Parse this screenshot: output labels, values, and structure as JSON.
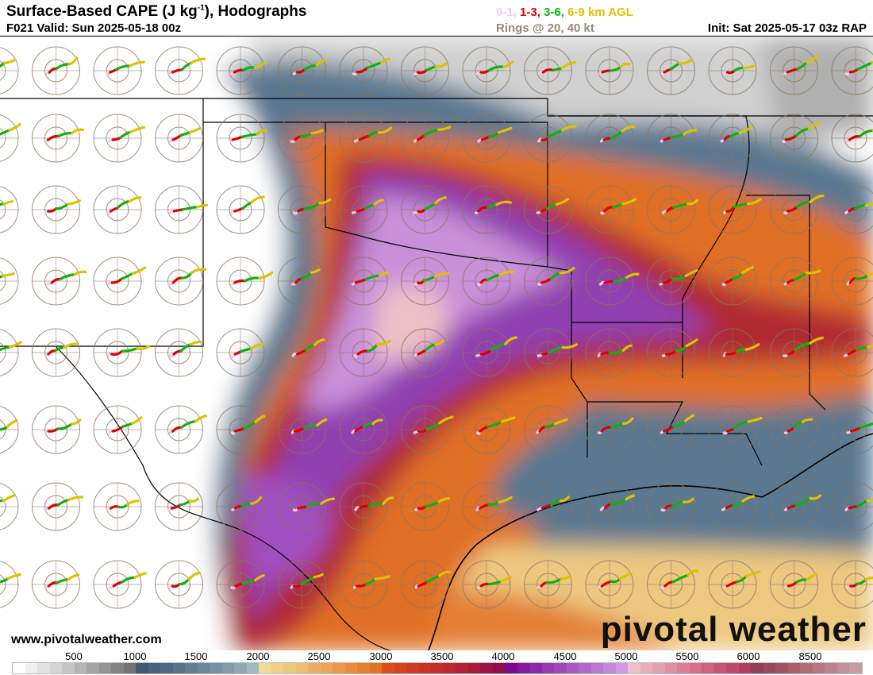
{
  "header": {
    "title_main": "Surface-Based CAPE (J kg",
    "title_sup": "-1",
    "title_end": "), Hodographs",
    "valid": "F021 Valid: Sun 2025-05-18 00z",
    "legend": [
      {
        "text": "0-1,",
        "color": "#f5c8f0"
      },
      {
        "text": "1-3,",
        "color": "#e00000"
      },
      {
        "text": "3-6,",
        "color": "#10b010"
      },
      {
        "text": "6-9 km AGL",
        "color": "#e0c000"
      }
    ],
    "rings": "Rings @ 20, 40 kt",
    "init": "Init: Sat 2025-05-17 03z RAP"
  },
  "watermark": "www.pivotalweather.com",
  "logo": "pivotal weather",
  "colorbar": {
    "labels": [
      "500",
      "1000",
      "1500",
      "2000",
      "2500",
      "3000",
      "3500",
      "4000",
      "4500",
      "5000",
      "5500",
      "6000",
      "8500"
    ],
    "colors": [
      "#ffffff",
      "#f0f0f0",
      "#e2e2e2",
      "#d4d4d4",
      "#c6c6c6",
      "#b4b4b4",
      "#a4a4a4",
      "#949494",
      "#848484",
      "#747474",
      "#3c5a74",
      "#44627c",
      "#4c6a84",
      "#56748c",
      "#607e94",
      "#6a889c",
      "#7692a4",
      "#829cac",
      "#90a8b4",
      "#a0b8c0",
      "#ecdc98",
      "#ecd288",
      "#ecc87c",
      "#ecbc70",
      "#ecb064",
      "#eca458",
      "#ec984c",
      "#e88c40",
      "#e48034",
      "#e07428",
      "#dc4c1c",
      "#d6421e",
      "#d03a22",
      "#ca3226",
      "#c42c2a",
      "#bc262e",
      "#b22032",
      "#a81a3a",
      "#9c1442",
      "#900e4a",
      "#7c0890",
      "#8418a0",
      "#8c28a8",
      "#9838b0",
      "#a048b8",
      "#a858c0",
      "#b068c8",
      "#bc78d0",
      "#c488d8",
      "#d098e0",
      "#ecc0c8",
      "#e8b0bc",
      "#e4a0b0",
      "#e090a4",
      "#dc8098",
      "#d8708c",
      "#d06080",
      "#c85474",
      "#c04868",
      "#b43c5c",
      "#904050",
      "#984858",
      "#a05460",
      "#a86068",
      "#b06c74",
      "#b87880",
      "#bc848c",
      "#c09098",
      "#c49ca4"
    ],
    "cape_levels": [
      0,
      8500
    ]
  },
  "map": {
    "hodograph_colors": {
      "0-1": "#f5c8f0",
      "1-3": "#e00000",
      "3-6": "#10b010",
      "6-9": "#e0c000"
    },
    "ring_color": "#8a7560",
    "border_color": "#000000"
  }
}
